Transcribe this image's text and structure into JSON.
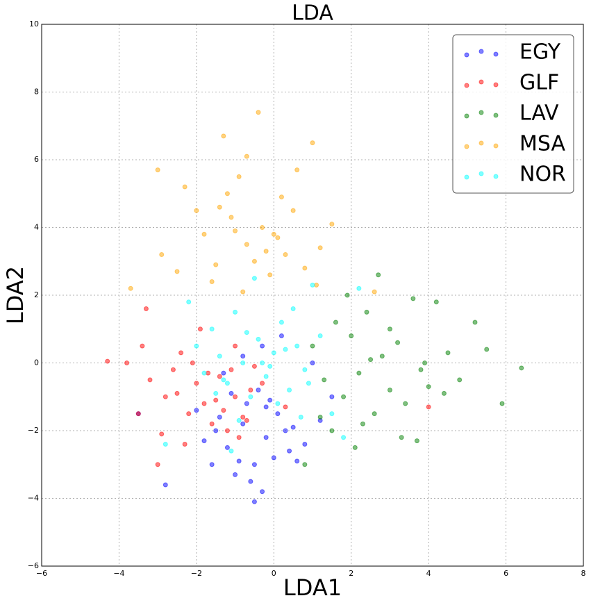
{
  "chart_data": {
    "type": "scatter",
    "title": "LDA",
    "xlabel": "LDA1",
    "ylabel": "LDA2",
    "xlim": [
      -6,
      8
    ],
    "ylim": [
      -6,
      10
    ],
    "xticks": [
      {
        "value": -6,
        "label": "−6"
      },
      {
        "value": -4,
        "label": "−4"
      },
      {
        "value": -2,
        "label": "−2"
      },
      0,
      2,
      4,
      6,
      8
    ],
    "yticks": [
      {
        "value": -6,
        "label": "−6"
      },
      {
        "value": -4,
        "label": "−4"
      },
      {
        "value": -2,
        "label": "−2"
      },
      0,
      2,
      4,
      6,
      8,
      10
    ],
    "grid": true,
    "legend": "upper right",
    "series": [
      {
        "name": "EGY",
        "color": "#0000ff",
        "x": [
          -1.5,
          -1.2,
          -0.8,
          -0.5,
          -0.2,
          0.1,
          0.4,
          -1.0,
          -0.7,
          -0.3,
          0.0,
          0.5,
          -1.8,
          -1.4,
          -0.9,
          -0.6,
          -0.4,
          -0.1,
          0.3,
          0.8,
          1.2,
          -2.0,
          -1.6,
          -1.1,
          -0.5,
          -0.2,
          0.6,
          1.5,
          -2.8,
          -3.5,
          -0.3,
          -0.8,
          -1.3,
          0.2,
          1.0
        ],
        "values": [
          -2.0,
          -2.5,
          -1.8,
          -3.0,
          -2.2,
          -1.5,
          -2.6,
          -3.3,
          -1.2,
          -3.8,
          -2.8,
          -1.9,
          -2.3,
          -1.6,
          -2.9,
          -3.5,
          -0.8,
          -1.1,
          -2.0,
          -2.4,
          -1.7,
          -1.4,
          -3.0,
          -0.9,
          -4.1,
          -1.3,
          -2.9,
          -1.0,
          -3.6,
          -1.5,
          0.5,
          0.2,
          -0.3,
          0.8,
          0.0
        ]
      },
      {
        "name": "GLF",
        "color": "#ff0000",
        "x": [
          -4.3,
          -3.8,
          -3.5,
          -3.2,
          -3.0,
          -2.8,
          -2.6,
          -2.4,
          -2.2,
          -2.0,
          -1.8,
          -1.6,
          -1.4,
          -1.2,
          -1.0,
          -0.8,
          -0.6,
          -2.5,
          -2.1,
          -1.7,
          -1.3,
          -0.9,
          -3.4,
          -2.9,
          -1.9,
          -1.5,
          -1.1,
          -0.7,
          -0.3,
          0.3,
          4.0,
          -3.3,
          -2.3,
          -1.0,
          -0.5
        ],
        "values": [
          0.05,
          0.0,
          -1.5,
          -0.5,
          -3.0,
          -1.0,
          -0.2,
          0.3,
          -1.5,
          -0.6,
          -1.2,
          -1.8,
          -0.4,
          -2.0,
          -1.0,
          -1.6,
          -0.8,
          -0.9,
          0.0,
          -0.3,
          -1.4,
          -2.2,
          0.5,
          -2.1,
          1.0,
          -1.1,
          -0.2,
          -1.7,
          -0.6,
          -1.3,
          -1.3,
          1.6,
          -2.4,
          0.5,
          -0.1
        ]
      },
      {
        "name": "LAV",
        "color": "#008000",
        "x": [
          1.0,
          1.3,
          1.6,
          1.8,
          2.0,
          2.2,
          2.4,
          2.6,
          2.8,
          3.0,
          3.2,
          3.4,
          3.6,
          3.8,
          4.0,
          4.2,
          4.5,
          4.8,
          5.2,
          5.5,
          5.9,
          6.4,
          1.5,
          2.1,
          2.7,
          3.3,
          3.9,
          4.4,
          2.5,
          3.0,
          1.9,
          2.3,
          3.7,
          0.8,
          1.2
        ],
        "values": [
          0.5,
          -0.5,
          1.2,
          -1.0,
          0.8,
          -0.3,
          1.5,
          -1.5,
          0.2,
          -0.8,
          0.6,
          -1.2,
          1.9,
          -0.2,
          -0.7,
          1.8,
          0.3,
          -0.5,
          1.2,
          0.4,
          -1.2,
          -0.15,
          -2.0,
          -2.5,
          2.6,
          -2.2,
          0.0,
          -0.9,
          0.1,
          1.0,
          2.0,
          -1.8,
          -2.3,
          -3.0,
          -1.6
        ]
      },
      {
        "name": "MSA",
        "color": "#ffa500",
        "x": [
          -3.7,
          -3.0,
          -2.9,
          -2.3,
          -2.0,
          -1.8,
          -1.5,
          -1.3,
          -1.1,
          -0.9,
          -0.7,
          -0.5,
          -0.3,
          -0.1,
          0.1,
          0.3,
          0.5,
          0.8,
          1.0,
          1.2,
          1.5,
          2.6,
          -0.4,
          -1.2,
          -0.7,
          -1.6,
          0.2,
          0.6,
          -1.0,
          -0.2,
          -2.5,
          1.1,
          -0.8,
          0.0,
          -1.4
        ],
        "values": [
          2.2,
          5.7,
          3.2,
          5.2,
          4.5,
          3.8,
          2.9,
          6.7,
          4.3,
          5.5,
          3.5,
          3.0,
          4.0,
          2.6,
          3.7,
          3.2,
          4.5,
          2.8,
          6.5,
          3.4,
          4.1,
          2.1,
          7.4,
          5.0,
          6.1,
          2.4,
          4.9,
          5.7,
          3.9,
          3.3,
          2.7,
          2.3,
          2.1,
          3.8,
          4.6
        ]
      },
      {
        "name": "NOR",
        "color": "#00ffff",
        "x": [
          -2.0,
          -1.8,
          -1.6,
          -1.4,
          -1.2,
          -1.0,
          -0.8,
          -0.6,
          -0.4,
          -0.2,
          0.0,
          0.2,
          0.4,
          0.6,
          0.8,
          1.0,
          1.2,
          1.5,
          1.8,
          2.2,
          -2.8,
          -2.2,
          -1.5,
          -0.9,
          -0.3,
          0.3,
          0.9,
          -1.1,
          -0.5,
          0.1,
          0.5,
          -0.7,
          -0.1,
          0.7,
          -1.3
        ],
        "values": [
          0.5,
          -0.3,
          1.0,
          0.2,
          -0.6,
          1.5,
          0.0,
          -1.0,
          0.7,
          -0.4,
          0.3,
          1.2,
          -0.8,
          0.5,
          -0.2,
          2.3,
          0.8,
          -1.5,
          -2.2,
          2.2,
          -2.4,
          1.8,
          -0.9,
          -1.7,
          0.0,
          0.4,
          -0.6,
          -2.6,
          2.5,
          -1.2,
          1.6,
          0.9,
          -0.1,
          -1.6,
          -0.5
        ]
      }
    ]
  }
}
